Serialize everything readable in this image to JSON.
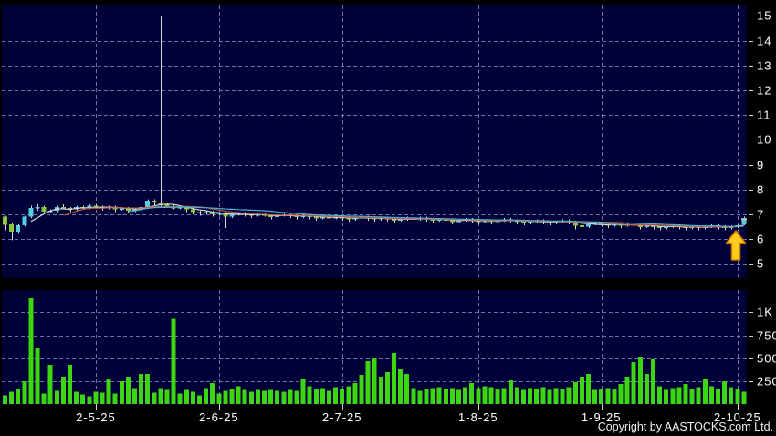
{
  "window": {
    "copyright": "Copyright by AASTOCKS.com Ltd."
  },
  "colors": {
    "background": "#000000",
    "plot_background": "#000038",
    "grid": "#9090bc",
    "wick": "#d8d8d8",
    "candle_up": "#56cede",
    "candle_down": "#8ac838",
    "volume_bar": "#3cd60e",
    "ma_colors": [
      "#d8d8d8",
      "#c05540",
      "#4ab8d8"
    ],
    "arrow_fill": "#ffce1e",
    "arrow_stroke": "#cf7d00",
    "close_dash": "#bbbbbb"
  },
  "chart_data": {
    "type": "candlestick+volume-bar",
    "title": "",
    "legend": "none",
    "grid": "dashed",
    "price_axis": {
      "labels": [
        "15",
        "14",
        "13",
        "12",
        "11",
        "10",
        "9",
        "8",
        "7",
        "6",
        "5"
      ],
      "values": [
        15,
        14,
        13,
        12,
        11,
        10,
        9,
        8,
        7,
        6,
        5
      ],
      "range_visible": [
        4.4,
        15.4
      ]
    },
    "volume_axis": {
      "labels": [
        "1K",
        "750",
        "500",
        "250"
      ],
      "values": [
        1000,
        750,
        500,
        250
      ],
      "range_visible": [
        0,
        1240
      ]
    },
    "x_axis": {
      "labels": [
        "2-5-25",
        "2-6-25",
        "2-7-25",
        "1-8-25",
        "1-9-25",
        "2-10-25"
      ],
      "indices": [
        14,
        33,
        52,
        73,
        92,
        113
      ]
    },
    "ma_windows": [
      5,
      10,
      20
    ],
    "marker": {
      "type": "up-arrow",
      "index": 114,
      "price": 6.3
    },
    "candles": [
      [
        6.9,
        6.95,
        6.35,
        6.57
      ],
      [
        6.6,
        6.65,
        5.95,
        6.3
      ],
      [
        6.3,
        6.6,
        6.25,
        6.55
      ],
      [
        6.55,
        6.95,
        6.5,
        6.9
      ],
      [
        6.9,
        7.35,
        6.85,
        7.25
      ],
      [
        7.25,
        7.4,
        7.15,
        7.3
      ],
      [
        7.3,
        7.35,
        7.0,
        7.1
      ],
      [
        7.1,
        7.2,
        7.05,
        7.15
      ],
      [
        7.15,
        7.35,
        7.1,
        7.3
      ],
      [
        7.3,
        7.4,
        7.2,
        7.25
      ],
      [
        7.25,
        7.3,
        7.1,
        7.2
      ],
      [
        7.2,
        7.35,
        7.15,
        7.3
      ],
      [
        7.3,
        7.35,
        7.2,
        7.25
      ],
      [
        7.25,
        7.4,
        7.2,
        7.35
      ],
      [
        7.35,
        7.4,
        7.25,
        7.3
      ],
      [
        7.3,
        7.35,
        7.15,
        7.25
      ],
      [
        7.25,
        7.35,
        7.2,
        7.3
      ],
      [
        7.3,
        7.35,
        7.1,
        7.2
      ],
      [
        7.2,
        7.3,
        7.15,
        7.25
      ],
      [
        7.25,
        7.3,
        7.05,
        7.15
      ],
      [
        7.15,
        7.25,
        7.1,
        7.2
      ],
      [
        7.2,
        7.35,
        7.15,
        7.3
      ],
      [
        7.3,
        7.6,
        7.25,
        7.55
      ],
      [
        7.55,
        7.6,
        7.35,
        7.5
      ],
      [
        7.45,
        15.0,
        7.3,
        7.4
      ],
      [
        7.4,
        7.45,
        7.25,
        7.3
      ],
      [
        7.3,
        7.4,
        7.2,
        7.25
      ],
      [
        7.25,
        7.35,
        7.2,
        7.3
      ],
      [
        7.3,
        7.35,
        7.1,
        7.2
      ],
      [
        7.2,
        7.25,
        7.0,
        7.1
      ],
      [
        7.1,
        7.15,
        6.95,
        7.05
      ],
      [
        7.05,
        7.15,
        7.0,
        7.1
      ],
      [
        7.1,
        7.15,
        6.9,
        7.0
      ],
      [
        7.0,
        7.1,
        6.95,
        7.05
      ],
      [
        7.05,
        7.1,
        6.45,
        6.9
      ],
      [
        6.9,
        7.05,
        6.85,
        7.0
      ],
      [
        7.0,
        7.1,
        6.95,
        7.05
      ],
      [
        7.05,
        7.1,
        6.9,
        7.0
      ],
      [
        7.0,
        7.05,
        6.85,
        6.95
      ],
      [
        6.95,
        7.05,
        6.9,
        7.0
      ],
      [
        7.0,
        7.05,
        6.9,
        6.95
      ],
      [
        6.95,
        7.0,
        6.8,
        6.9
      ],
      [
        6.9,
        7.0,
        6.85,
        6.95
      ],
      [
        6.95,
        7.05,
        6.9,
        7.0
      ],
      [
        7.0,
        7.05,
        6.85,
        6.95
      ],
      [
        6.95,
        7.0,
        6.8,
        6.9
      ],
      [
        6.9,
        7.0,
        6.85,
        6.95
      ],
      [
        6.95,
        7.0,
        6.8,
        6.9
      ],
      [
        6.9,
        6.95,
        6.75,
        6.85
      ],
      [
        6.85,
        6.95,
        6.8,
        6.9
      ],
      [
        6.9,
        6.95,
        6.75,
        6.85
      ],
      [
        6.85,
        6.95,
        6.8,
        6.9
      ],
      [
        6.9,
        6.95,
        6.75,
        6.85
      ],
      [
        6.85,
        6.9,
        6.7,
        6.8
      ],
      [
        6.8,
        6.9,
        6.75,
        6.85
      ],
      [
        6.85,
        6.95,
        6.8,
        6.9
      ],
      [
        6.9,
        6.95,
        6.75,
        6.85
      ],
      [
        6.85,
        6.9,
        6.7,
        6.8
      ],
      [
        6.8,
        6.9,
        6.75,
        6.85
      ],
      [
        6.85,
        6.9,
        6.7,
        6.8
      ],
      [
        6.8,
        6.85,
        6.65,
        6.75
      ],
      [
        6.75,
        6.85,
        6.7,
        6.8
      ],
      [
        6.8,
        6.9,
        6.75,
        6.85
      ],
      [
        6.85,
        6.9,
        6.7,
        6.8
      ],
      [
        6.8,
        6.9,
        6.75,
        6.85
      ],
      [
        6.85,
        6.9,
        6.7,
        6.8
      ],
      [
        6.8,
        6.85,
        6.65,
        6.75
      ],
      [
        6.75,
        6.85,
        6.7,
        6.8
      ],
      [
        6.8,
        6.85,
        6.65,
        6.75
      ],
      [
        6.75,
        6.8,
        6.6,
        6.7
      ],
      [
        6.7,
        6.8,
        6.65,
        6.75
      ],
      [
        6.75,
        6.85,
        6.7,
        6.8
      ],
      [
        6.8,
        6.85,
        6.65,
        6.75
      ],
      [
        6.75,
        6.8,
        6.6,
        6.7
      ],
      [
        6.7,
        6.8,
        6.65,
        6.75
      ],
      [
        6.75,
        6.8,
        6.6,
        6.7
      ],
      [
        6.7,
        6.8,
        6.65,
        6.75
      ],
      [
        6.75,
        6.85,
        6.7,
        6.8
      ],
      [
        6.8,
        6.85,
        6.65,
        6.75
      ],
      [
        6.75,
        6.8,
        6.6,
        6.7
      ],
      [
        6.7,
        6.75,
        6.55,
        6.65
      ],
      [
        6.65,
        6.75,
        6.6,
        6.7
      ],
      [
        6.7,
        6.8,
        6.65,
        6.75
      ],
      [
        6.75,
        6.8,
        6.6,
        6.7
      ],
      [
        6.7,
        6.75,
        6.55,
        6.65
      ],
      [
        6.65,
        6.75,
        6.6,
        6.7
      ],
      [
        6.7,
        6.8,
        6.65,
        6.75
      ],
      [
        6.75,
        6.8,
        6.6,
        6.7
      ],
      [
        6.7,
        6.75,
        6.4,
        6.55
      ],
      [
        6.55,
        6.6,
        6.35,
        6.5
      ],
      [
        6.5,
        6.65,
        6.45,
        6.6
      ],
      [
        6.6,
        6.7,
        6.55,
        6.65
      ],
      [
        6.65,
        6.7,
        6.5,
        6.6
      ],
      [
        6.6,
        6.65,
        6.45,
        6.55
      ],
      [
        6.55,
        6.65,
        6.5,
        6.6
      ],
      [
        6.6,
        6.65,
        6.45,
        6.55
      ],
      [
        6.55,
        6.65,
        6.5,
        6.6
      ],
      [
        6.6,
        6.65,
        6.45,
        6.55
      ],
      [
        6.55,
        6.6,
        6.4,
        6.5
      ],
      [
        6.5,
        6.6,
        6.45,
        6.55
      ],
      [
        6.55,
        6.6,
        6.4,
        6.5
      ],
      [
        6.5,
        6.55,
        6.35,
        6.45
      ],
      [
        6.45,
        6.55,
        6.4,
        6.5
      ],
      [
        6.5,
        6.6,
        6.45,
        6.55
      ],
      [
        6.55,
        6.6,
        6.4,
        6.5
      ],
      [
        6.5,
        6.55,
        6.35,
        6.45
      ],
      [
        6.45,
        6.55,
        6.4,
        6.5
      ],
      [
        6.5,
        6.55,
        6.35,
        6.45
      ],
      [
        6.45,
        6.55,
        6.4,
        6.5
      ],
      [
        6.5,
        6.6,
        6.45,
        6.55
      ],
      [
        6.55,
        6.6,
        6.4,
        6.5
      ],
      [
        6.5,
        6.55,
        6.35,
        6.45
      ],
      [
        6.45,
        6.55,
        6.4,
        6.5
      ],
      [
        6.5,
        6.6,
        6.45,
        6.55
      ],
      [
        6.6,
        6.9,
        6.55,
        6.85
      ]
    ],
    "volumes": [
      100,
      140,
      170,
      250,
      1150,
      615,
      120,
      430,
      150,
      300,
      430,
      140,
      110,
      90,
      140,
      130,
      280,
      120,
      250,
      300,
      180,
      330,
      330,
      130,
      180,
      160,
      930,
      120,
      160,
      140,
      100,
      180,
      230,
      120,
      150,
      170,
      200,
      160,
      140,
      160,
      150,
      160,
      150,
      140,
      160,
      150,
      280,
      200,
      170,
      180,
      150,
      190,
      170,
      200,
      230,
      320,
      470,
      500,
      300,
      350,
      560,
      390,
      330,
      180,
      150,
      170,
      180,
      190,
      170,
      180,
      160,
      190,
      230,
      180,
      200,
      190,
      170,
      180,
      260,
      190,
      160,
      180,
      170,
      190,
      160,
      180,
      170,
      190,
      240,
      300,
      330,
      160,
      170,
      180,
      170,
      220,
      300,
      460,
      520,
      330,
      490,
      200,
      160,
      180,
      190,
      220,
      170,
      190,
      280,
      200,
      170,
      250,
      190,
      170,
      140
    ]
  }
}
